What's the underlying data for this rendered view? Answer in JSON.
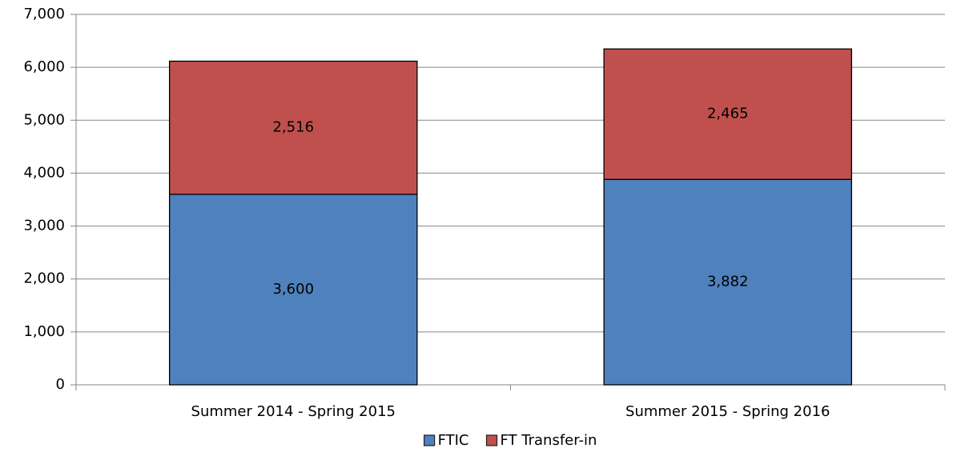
{
  "chart_data": {
    "type": "stacked_bar",
    "categories": [
      "Summer 2014 - Spring 2015",
      "Summer 2015 - Spring 2016"
    ],
    "series": [
      {
        "name": "FTIC",
        "color": "#4f81bd",
        "values": [
          3600,
          3882
        ],
        "value_labels": [
          "3,600",
          "3,882"
        ]
      },
      {
        "name": "FT Transfer-in",
        "color": "#c0504d",
        "values": [
          2516,
          2465
        ],
        "value_labels": [
          "2,516",
          "2,465"
        ]
      }
    ],
    "ylim": [
      0,
      7000
    ],
    "yticks": [
      0,
      {
        "value": 1000,
        "label": "1,000"
      },
      {
        "value": 2000,
        "label": "2,000"
      },
      {
        "value": 3000,
        "label": "3,000"
      },
      {
        "value": 4000,
        "label": "4,000"
      },
      {
        "value": 5000,
        "label": "5,000"
      },
      {
        "value": 6000,
        "label": "6,000"
      },
      {
        "value": 7000,
        "label": "7,000"
      }
    ],
    "grid": true,
    "legend": "bottom"
  }
}
